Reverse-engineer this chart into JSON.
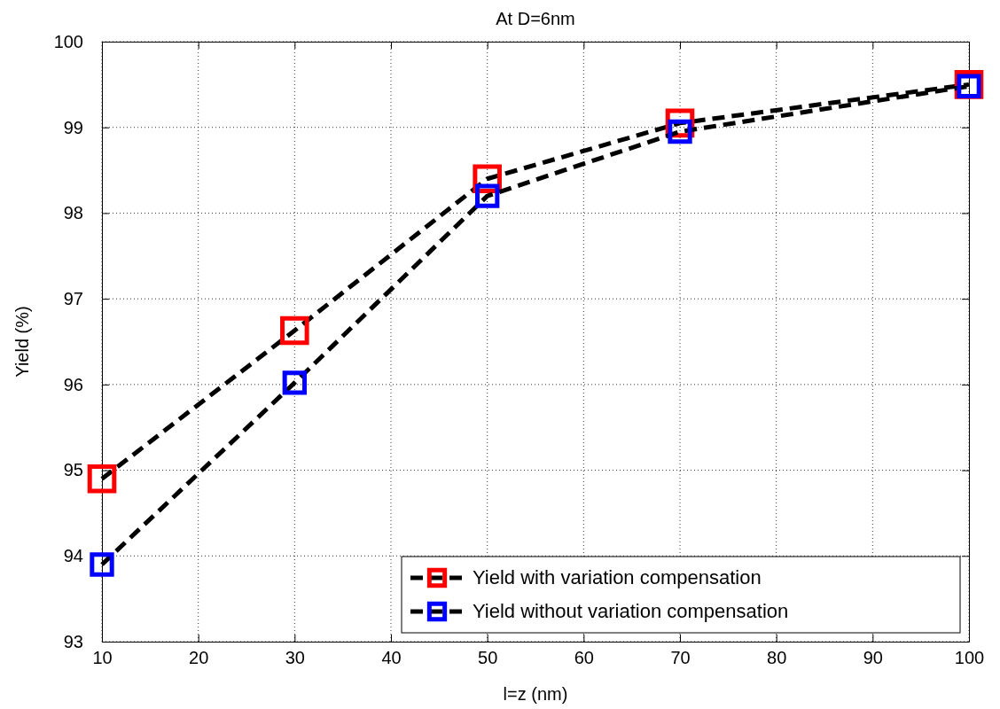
{
  "chart_data": {
    "type": "line",
    "title": "At D=6nm",
    "xlabel": "l=z (nm)",
    "ylabel": "Yield (%)",
    "x": [
      10,
      30,
      50,
      70,
      100
    ],
    "series": [
      {
        "name": "Yield with variation compensation",
        "color": "#ff0000",
        "values": [
          94.9,
          96.63,
          98.4,
          99.05,
          99.5
        ]
      },
      {
        "name": "Yield without variation compensation",
        "color": "#0000ff",
        "values": [
          93.9,
          96.02,
          98.2,
          98.95,
          99.48
        ]
      }
    ],
    "xlim": [
      10,
      100
    ],
    "xticks": [
      10,
      20,
      30,
      40,
      50,
      60,
      70,
      80,
      90,
      100
    ],
    "ylim": [
      93,
      100
    ],
    "yticks": [
      93,
      94,
      95,
      96,
      97,
      98,
      99,
      100
    ],
    "grid": true,
    "legend": "bottom right",
    "marker": "square",
    "line_style": "dashed"
  }
}
